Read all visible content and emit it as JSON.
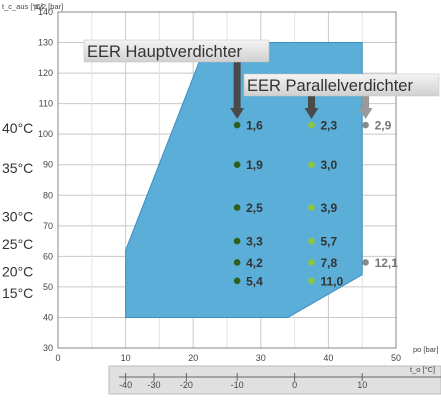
{
  "chart_data": {
    "type": "scatter",
    "ylabel_left": "t_c_aus [°C]",
    "ylabel": "pv2 [bar]",
    "xlabel": "po [bar]",
    "xlabel_secondary": "t_o [°C]",
    "xlim": [
      0,
      50
    ],
    "ylim": [
      30,
      140
    ],
    "x_ticks": [
      "0",
      "10",
      "20",
      "30",
      "40",
      "50"
    ],
    "y_ticks": [
      "30",
      "40",
      "50",
      "60",
      "70",
      "80",
      "90",
      "100",
      "110",
      "120",
      "130",
      "140"
    ],
    "secondary_x_ticks": [
      "-40",
      "-30",
      "-20",
      "-10",
      "0",
      "10"
    ],
    "secondary_x_tick_positions": [
      10,
      14.2,
      19,
      26.5,
      35,
      45
    ],
    "envelope": [
      [
        10,
        40
      ],
      [
        34,
        40
      ],
      [
        45,
        54
      ],
      [
        45,
        130
      ],
      [
        22,
        130
      ],
      [
        10,
        62
      ]
    ],
    "temperatures": [
      {
        "label": "40°C",
        "y": 102
      },
      {
        "label": "35°C",
        "y": 89
      },
      {
        "label": "30°C",
        "y": 73
      },
      {
        "label": "25°C",
        "y": 64
      },
      {
        "label": "20°C",
        "y": 55
      },
      {
        "label": "15°C",
        "y": 48
      }
    ],
    "series": [
      {
        "name": "EER Hauptverdichter",
        "color": "#2e5e1e",
        "x": [
          26.5,
          26.5,
          26.5,
          26.5,
          26.5,
          26.5
        ],
        "y": [
          103,
          90,
          76,
          65,
          58,
          52
        ],
        "labels": [
          "1,6",
          "1,9",
          "2,5",
          "3,3",
          "4,2",
          "5,4"
        ]
      },
      {
        "name": "EER Parallelverdichter",
        "color": "#8cc63f",
        "x": [
          37.5,
          37.5,
          37.5,
          37.5,
          37.5,
          37.5
        ],
        "y": [
          103,
          90,
          76,
          65,
          58,
          52
        ],
        "labels": [
          "2,3",
          "3,0",
          "3,9",
          "5,7",
          "7,8",
          "11,0"
        ]
      },
      {
        "name": "",
        "color": "#8a8a8a",
        "x": [
          45.5,
          45.5
        ],
        "y": [
          103,
          58
        ],
        "labels": [
          "2,9",
          "12,1"
        ]
      }
    ],
    "annotations": [
      {
        "text": "EER Hauptverdichter",
        "arrow_to_series": 0
      },
      {
        "text": "EER Parallelverdichter",
        "arrow_to_series": 1
      }
    ],
    "colors": {
      "envelope": "#5aaed8",
      "envelope_stroke": "#3d8fc0",
      "grid": "#c8c8c8",
      "arrow_dark": "#4a4a4a",
      "arrow_grey": "#9a9a9a",
      "secondary_axis_bg": "#e0e0e0"
    }
  }
}
